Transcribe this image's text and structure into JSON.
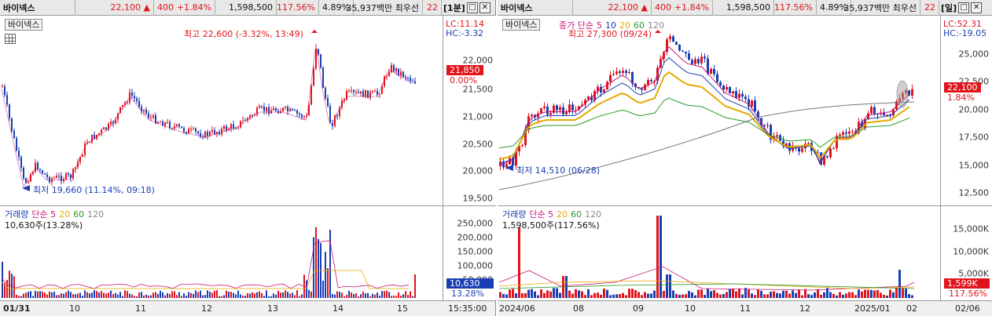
{
  "left": {
    "header": {
      "name": "바이넥스",
      "price": "22,100",
      "arrow": "▲",
      "change": "400",
      "pct": "+1.84%",
      "volume": "1,598,500",
      "vol_ratio": "117.56%",
      "turnover": "4.89%",
      "amount": "35,937백만",
      "bid_label": "최우선",
      "bid": "22",
      "period": "[1분]"
    },
    "stock_tag": "바이넥스",
    "lc": "LC:11.14",
    "hc": "HC:-3.32",
    "high_label": "최고 22,600 (-3.32%, 13:49)",
    "low_label": "최저 19,660 (11.14%, 09:18)",
    "price_axis": [
      "22,000",
      "21,500",
      "21,000",
      "20,500",
      "20,000",
      "19,500"
    ],
    "cur_price_box": "21,850",
    "cur_pct": "0.00%",
    "vol_legend": {
      "title": "거래량",
      "ma": "단순 5",
      "ma20": "20",
      "ma60": "60",
      "ma120": "120"
    },
    "vol_value": "10,630주(13.28%)",
    "vol_axis": [
      "250,000",
      "200,000",
      "150,000",
      "100,000",
      "50,000"
    ],
    "vol_box": "10,630",
    "vol_pct": "13.28%",
    "x_labels": [
      "01/31",
      "10",
      "11",
      "12",
      "13",
      "14",
      "15"
    ],
    "time": "15:35:00"
  },
  "right": {
    "header": {
      "name": "바이넥스",
      "price": "22,100",
      "arrow": "▲",
      "change": "400",
      "pct": "+1.84%",
      "volume": "1,598,500",
      "vol_ratio": "117.56%",
      "turnover": "4.89%",
      "amount": "35,937백만",
      "bid_label": "최우선",
      "bid": "22",
      "period": "[일]"
    },
    "stock_tag": "바이넥스",
    "ma_legend": {
      "title": "종가 단순",
      "ma5": "5",
      "ma10": "10",
      "ma20": "20",
      "ma60": "60",
      "ma120": "120"
    },
    "lc": "LC:52.31",
    "hc": "HC:-19.05",
    "high_label": "최고 27,300 (09/24)",
    "low_label": "최저 14,510 (06/28)",
    "price_axis": [
      "25,000",
      "22,500",
      "20,000",
      "17,500",
      "15,000",
      "12,500"
    ],
    "cur_price_box": "22,100",
    "cur_pct": "1.84%",
    "vol_legend": {
      "title": "거래량",
      "ma": "단순 5",
      "ma20": "20",
      "ma60": "60",
      "ma120": "120"
    },
    "vol_value": "1,598,500주(117.56%)",
    "vol_axis": [
      "15,000K",
      "10,000K",
      "5,000K"
    ],
    "vol_box": "1,599K",
    "vol_pct": "117.56%",
    "x_labels": [
      "2024/06",
      "08",
      "09",
      "10",
      "11",
      "12",
      "2025/01",
      "02"
    ],
    "date": "02/06"
  },
  "colors": {
    "up": "#e0141b",
    "down": "#1a3fb4",
    "ma5": "#c8147a",
    "ma20": "#e8a800",
    "ma60": "#2a9a2a",
    "ma120": "#888888"
  }
}
